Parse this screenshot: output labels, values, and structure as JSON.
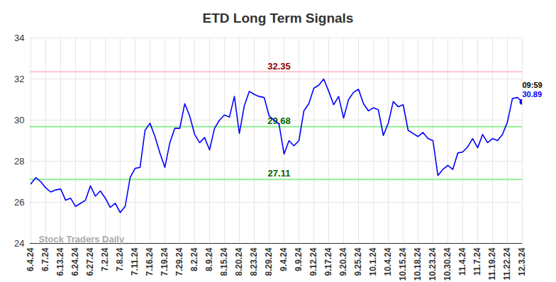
{
  "chart_data": {
    "type": "line",
    "title": "ETD Long Term Signals",
    "categories": [
      "6.4.24",
      null,
      null,
      "6.7.24",
      null,
      null,
      "6.13.24",
      null,
      null,
      "6.24.24",
      null,
      null,
      "6.27.24",
      null,
      null,
      "7.2.24",
      null,
      null,
      "7.8.24",
      null,
      null,
      "7.11.24",
      null,
      null,
      "7.16.24",
      null,
      null,
      "7.19.24",
      null,
      null,
      "7.29.24",
      null,
      null,
      "8.2.24",
      null,
      null,
      "8.9.24",
      null,
      null,
      "8.15.24",
      null,
      null,
      "8.20.24",
      null,
      null,
      "8.23.24",
      null,
      null,
      "8.29.24",
      null,
      null,
      "9.4.24",
      null,
      null,
      "9.9.24",
      null,
      null,
      "9.12.24",
      null,
      null,
      "9.17.24",
      null,
      null,
      "9.20.24",
      null,
      null,
      "9.25.24",
      null,
      null,
      "10.1.24",
      null,
      null,
      "10.4.24",
      null,
      null,
      "10.15.24",
      null,
      null,
      "10.18.24",
      null,
      null,
      "10.23.24",
      null,
      null,
      "10.30.24",
      null,
      null,
      "11.4.24",
      null,
      null,
      "11.7.24",
      null,
      null,
      "11.19.24",
      null,
      null,
      "11.22.24",
      null,
      null,
      "12.3.24"
    ],
    "values": [
      26.9,
      27.2,
      27.0,
      26.7,
      26.5,
      26.6,
      26.65,
      26.1,
      26.2,
      25.8,
      25.95,
      26.1,
      26.8,
      26.3,
      26.55,
      26.2,
      25.75,
      25.95,
      25.5,
      25.8,
      27.2,
      27.65,
      27.7,
      29.5,
      29.85,
      29.2,
      28.4,
      27.7,
      28.9,
      29.6,
      29.6,
      30.8,
      30.2,
      29.3,
      28.9,
      29.15,
      28.55,
      29.6,
      30.0,
      30.25,
      30.15,
      31.15,
      29.35,
      30.7,
      31.4,
      31.25,
      31.15,
      31.1,
      30.2,
      30.0,
      29.8,
      28.35,
      29.0,
      28.75,
      29.0,
      30.45,
      30.8,
      31.55,
      31.7,
      32.0,
      31.4,
      30.75,
      31.15,
      30.1,
      31.0,
      31.35,
      31.5,
      30.8,
      30.45,
      30.6,
      30.5,
      29.25,
      29.85,
      30.9,
      30.65,
      30.75,
      29.5,
      29.35,
      29.2,
      29.4,
      29.1,
      29.0,
      27.3,
      27.6,
      27.8,
      27.6,
      28.4,
      28.45,
      28.7,
      29.1,
      28.65,
      29.3,
      28.9,
      29.1,
      29.0,
      29.3,
      29.9,
      31.05,
      31.1,
      30.89
    ],
    "color": "#0000ff",
    "ylim": [
      24,
      34
    ],
    "yticks": [
      24,
      26,
      28,
      30,
      32,
      34
    ],
    "grid": true,
    "reference_lines": [
      {
        "value": 32.35,
        "label": "32.35",
        "color": "#ffc0cb",
        "label_color": "#8b0000"
      },
      {
        "value": 29.68,
        "label": "29.68",
        "color": "#90ee90",
        "label_color": "#006400"
      },
      {
        "value": 27.11,
        "label": "27.11",
        "color": "#90ee90",
        "label_color": "#006400"
      }
    ],
    "last_point": {
      "time": "09:59",
      "label": "30.89"
    },
    "watermark": "Stock Traders Daily"
  }
}
